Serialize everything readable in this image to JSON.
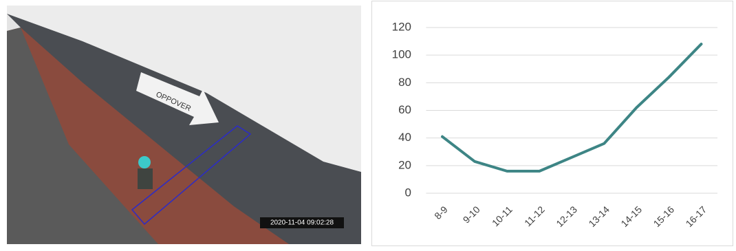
{
  "photo": {
    "arrow_text": "OPPOVER",
    "timestamp": "2020-11-04 09:02:28"
  },
  "chart_data": {
    "type": "line",
    "categories": [
      "8-9",
      "9-10",
      "10-11",
      "11-12",
      "12-13",
      "13-14",
      "14-15",
      "15-16",
      "16-17"
    ],
    "values": [
      41,
      23,
      16,
      16,
      26,
      36,
      62,
      84,
      108
    ],
    "color": "#3d8585",
    "ylim": [
      0,
      120
    ],
    "yticks": [
      0,
      20,
      40,
      60,
      80,
      100,
      120
    ],
    "grid": true
  }
}
